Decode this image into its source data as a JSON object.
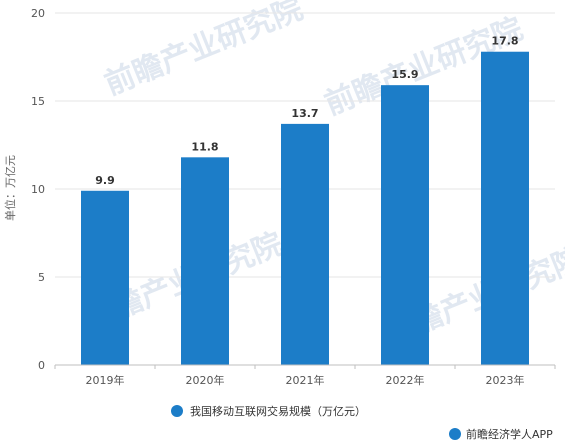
{
  "chart_data": {
    "type": "bar",
    "categories": [
      "2019年",
      "2020年",
      "2021年",
      "2022年",
      "2023年"
    ],
    "series": [
      {
        "name": "我国移动互联网交易规模（万亿元）",
        "values": [
          9.9,
          11.8,
          13.7,
          15.9,
          17.8
        ]
      }
    ],
    "data_labels": [
      "9.9",
      "11.8",
      "13.7",
      "15.9",
      "17.8"
    ],
    "ylabel": "单位：万亿元",
    "ylim": [
      0,
      20
    ],
    "yticks": [
      0,
      5,
      10,
      15,
      20
    ],
    "grid": "horizontal",
    "legend_position": "bottom",
    "bar_color": "#1c7dc8"
  },
  "watermark": {
    "text": "前瞻产业研究院"
  },
  "credit": {
    "text": "前瞻经济学人APP"
  },
  "colors": {
    "bar": "#1c7dc8",
    "grid": "#e6e6e6",
    "axis": "#bfbfbf"
  }
}
